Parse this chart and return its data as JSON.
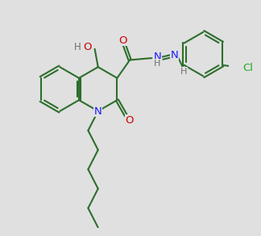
{
  "bg_color": "#e0e0e0",
  "bond_color": "#2d6e2d",
  "bond_width": 1.5,
  "N_color": "#1a1aff",
  "O_color": "#cc0000",
  "Cl_color": "#22aa22",
  "H_color": "#707070",
  "fs": 8.5,
  "bl": 1.0
}
